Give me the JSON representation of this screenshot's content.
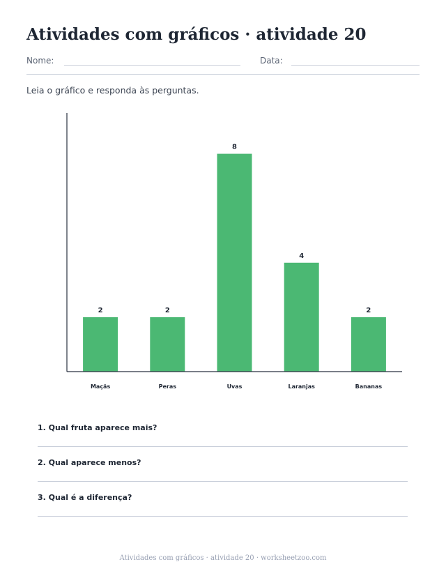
{
  "header": {
    "title": "Atividades com gráficos · atividade 20",
    "name_label": "Nome:",
    "date_label": "Data:"
  },
  "instruction": "Leia o gráfico e responda às perguntas.",
  "colors": {
    "bar": "#4bb873",
    "axis": "#2a3140",
    "rule": "#c9cfda"
  },
  "chart_data": {
    "type": "bar",
    "categories": [
      "Maçãs",
      "Peras",
      "Uvas",
      "Laranjas",
      "Bananas"
    ],
    "values": [
      2,
      2,
      8,
      4,
      2
    ],
    "ylim": [
      0,
      9.5
    ],
    "grid": false,
    "data_labels": true
  },
  "questions": [
    {
      "label": "1. Qual fruta aparece mais?"
    },
    {
      "label": "2. Qual aparece menos?"
    },
    {
      "label": "3. Qual é a diferença?"
    }
  ],
  "footer": "Atividades com gráficos · atividade 20 · worksheetzoo.com"
}
